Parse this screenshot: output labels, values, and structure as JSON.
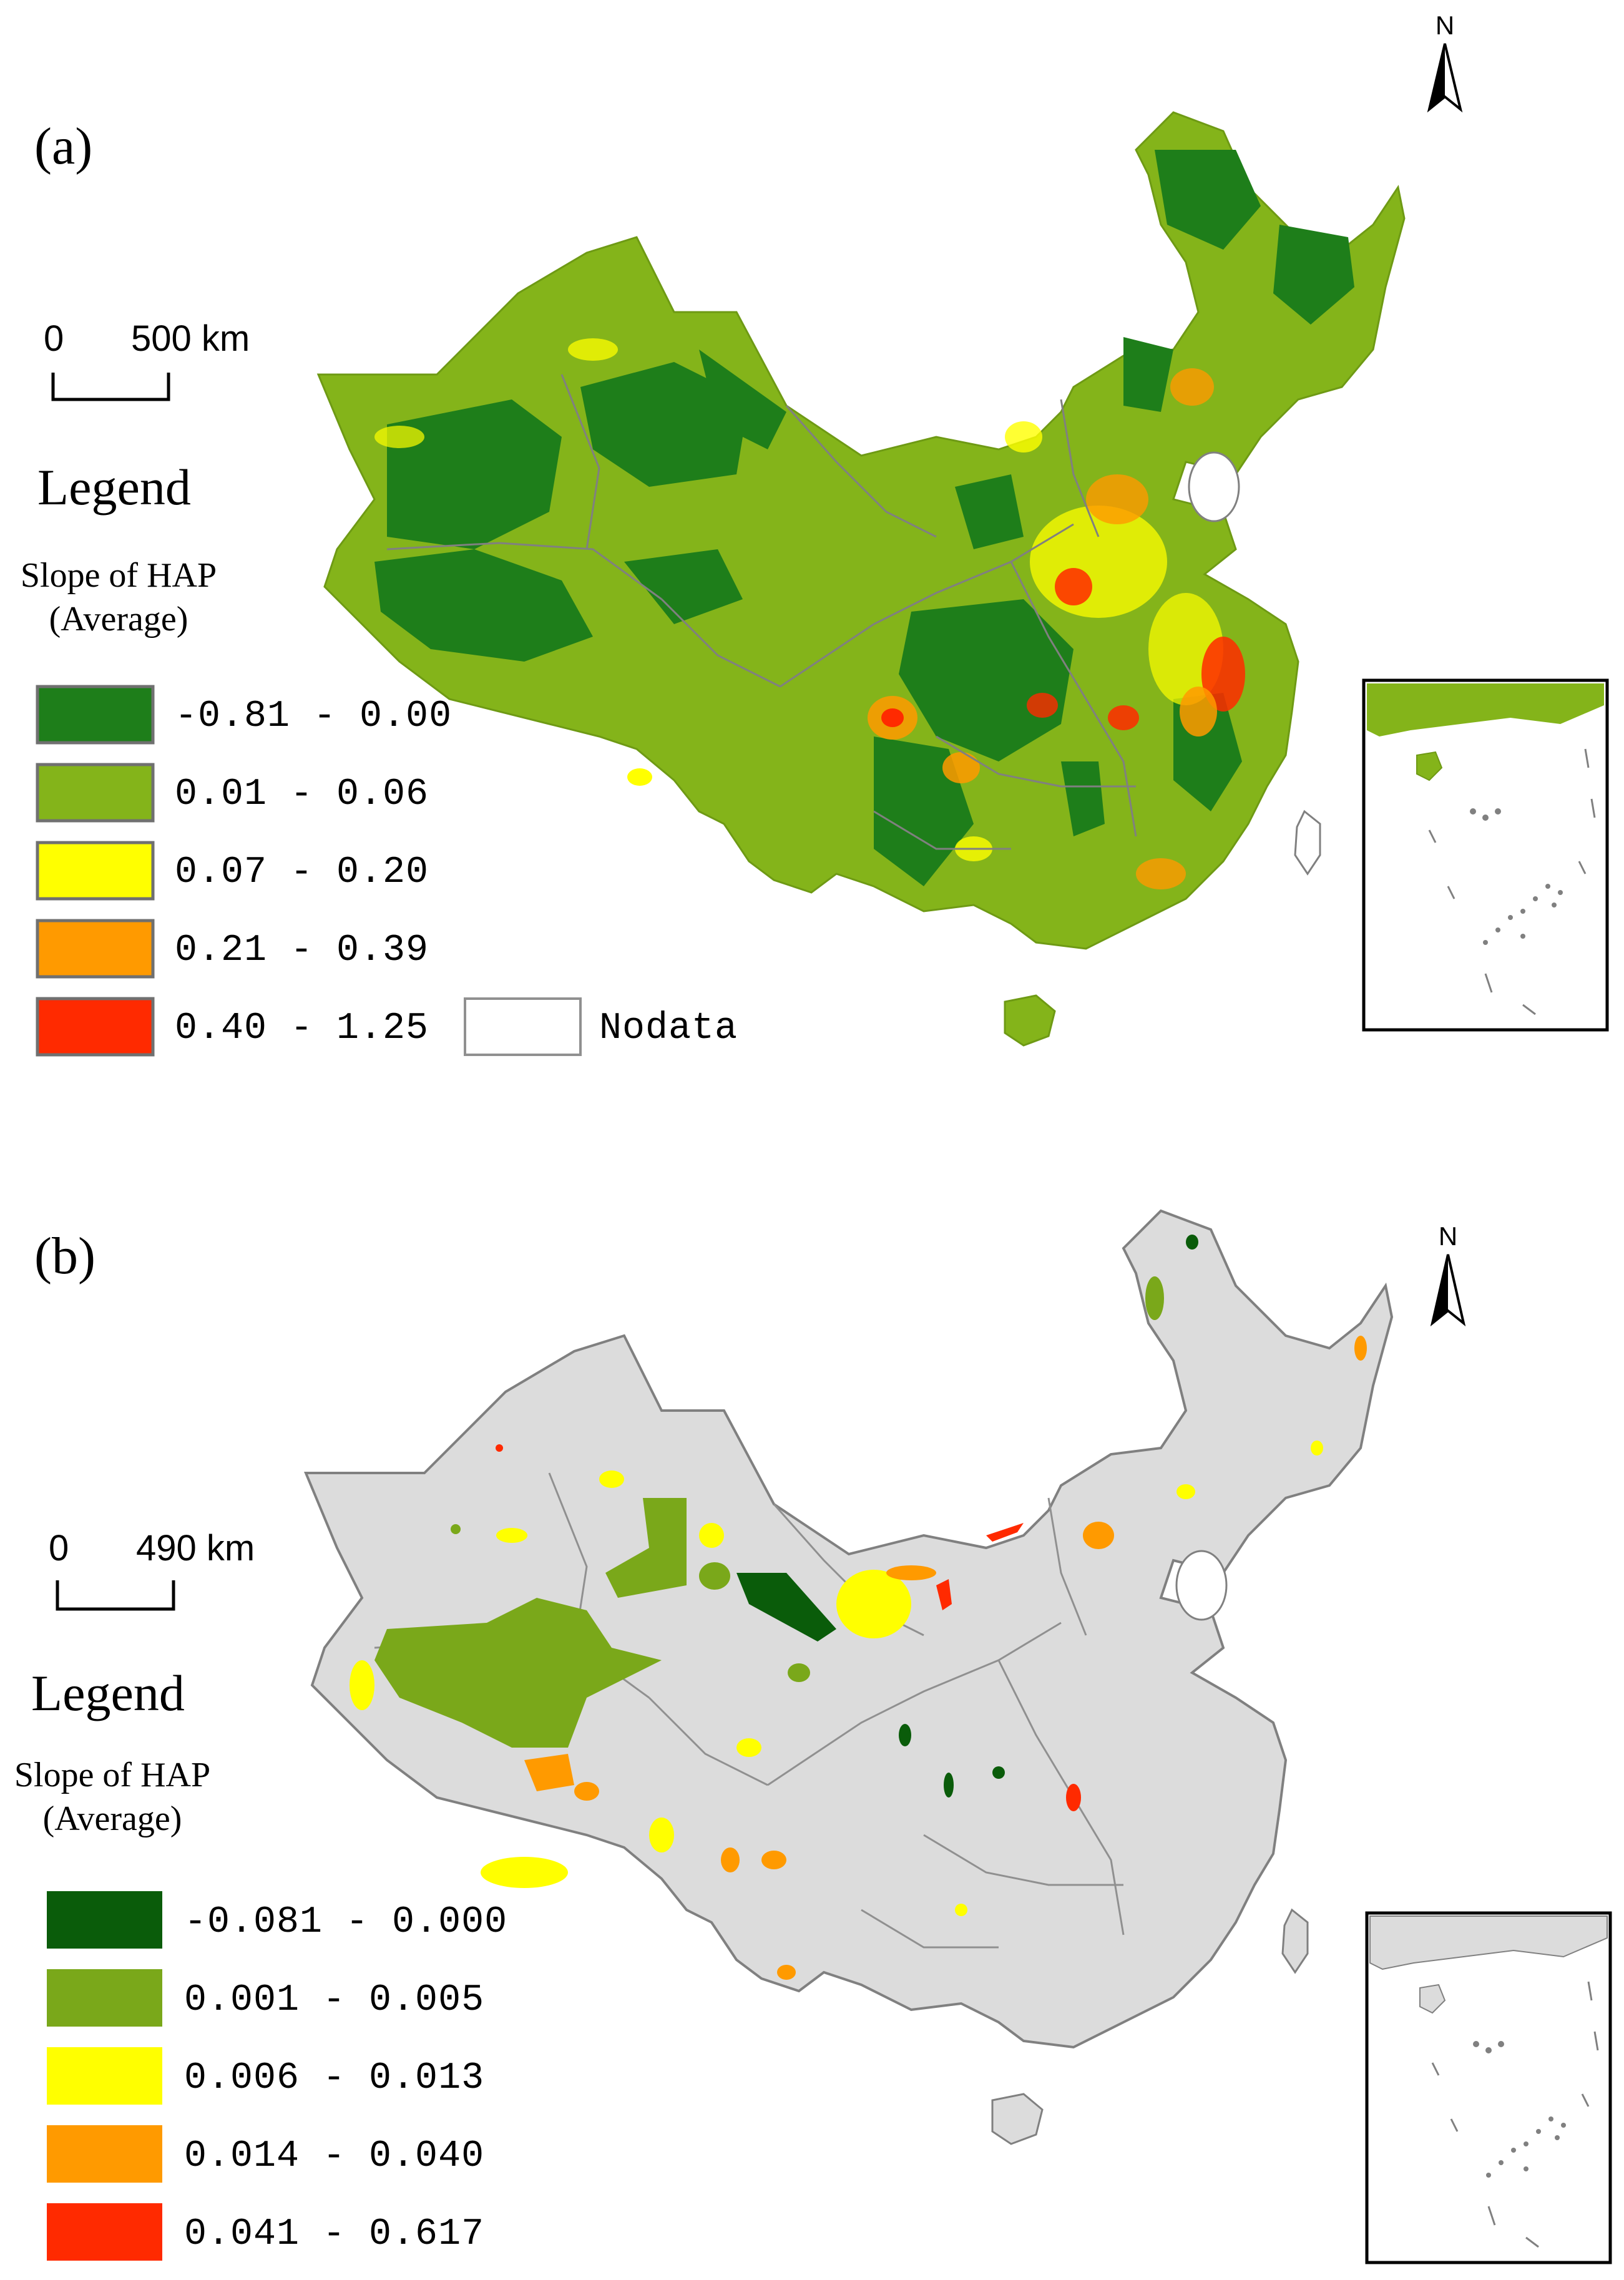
{
  "panels": [
    {
      "label": "(a)",
      "north": "N",
      "scale": {
        "zero": "0",
        "distance": "500 km"
      },
      "legend": {
        "title": "Legend",
        "subtitle_line1": "Slope of HAP",
        "subtitle_line2": "(Average)",
        "classes": [
          {
            "label": "-0.81 - 0.00",
            "color": "#1e7e1a"
          },
          {
            "label": "0.01 - 0.06",
            "color": "#84b41a"
          },
          {
            "label": "0.07 - 0.20",
            "color": "#ffff00"
          },
          {
            "label": "0.21 - 0.39",
            "color": "#ff9a00"
          },
          {
            "label": "0.40 - 1.25",
            "color": "#ff2a00"
          }
        ],
        "nodata_label": "Nodata"
      }
    },
    {
      "label": "(b)",
      "north": "N",
      "scale": {
        "zero": "0",
        "distance": "490 km"
      },
      "legend": {
        "title": "Legend",
        "subtitle_line1": "Slope of HAP",
        "subtitle_line2": "(Average)",
        "classes": [
          {
            "label": "-0.081 - 0.000",
            "color": "#0a5c0a"
          },
          {
            "label": "0.001 - 0.005",
            "color": "#7aa81a"
          },
          {
            "label": "0.006 - 0.013",
            "color": "#ffff00"
          },
          {
            "label": "0.014 - 0.040",
            "color": "#ff9a00"
          },
          {
            "label": "0.041 - 0.617",
            "color": "#ff2a00"
          }
        ]
      }
    }
  ],
  "colors": {
    "map_base_a": "#84b41a",
    "map_base_b": "#dcdcdc",
    "boundary": "#808080",
    "nodata": "#ffffff"
  }
}
